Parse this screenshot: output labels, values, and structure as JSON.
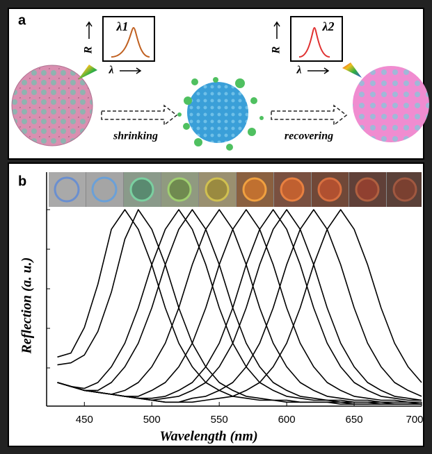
{
  "panel_a": {
    "label": "a",
    "box1": {
      "peak": "λ1",
      "y_axis": "R",
      "x_axis": "λ"
    },
    "box2": {
      "peak": "λ2",
      "y_axis": "R",
      "x_axis": "λ"
    },
    "arrow1": "shrinking",
    "arrow2": "recovering"
  },
  "chart_data": {
    "type": "line",
    "panel_label": "b",
    "x_label": "Wavelength (nm)",
    "y_label": "Reflection (a. u.)",
    "x": [
      430,
      440,
      450,
      460,
      470,
      480,
      490,
      500,
      510,
      520,
      530,
      540,
      550,
      560,
      570,
      580,
      590,
      600,
      610,
      620,
      630,
      640,
      650,
      660,
      670,
      680,
      690,
      700
    ],
    "xlim": [
      422,
      700
    ],
    "xticks": [
      450,
      500,
      550,
      600,
      650,
      700
    ],
    "ylim": [
      0,
      1
    ],
    "series": [
      {
        "color": "#000000",
        "values": [
          0.25,
          0.27,
          0.4,
          0.62,
          0.9,
          1.0,
          0.9,
          0.72,
          0.5,
          0.32,
          0.2,
          0.12,
          0.08,
          0.05,
          0.04,
          0.03,
          0.03,
          0.02,
          0.02,
          0.02,
          0.02,
          0.01,
          0.01,
          0.01,
          0.01,
          0.01,
          0.01,
          0.01
        ]
      },
      {
        "color": "#000000",
        "values": [
          0.21,
          0.22,
          0.26,
          0.38,
          0.58,
          0.85,
          1.0,
          0.9,
          0.72,
          0.5,
          0.32,
          0.2,
          0.12,
          0.08,
          0.05,
          0.04,
          0.03,
          0.03,
          0.02,
          0.02,
          0.02,
          0.02,
          0.01,
          0.01,
          0.01,
          0.01,
          0.01,
          0.01
        ]
      },
      {
        "color": "#000000",
        "values": [
          0.12,
          0.1,
          0.09,
          0.12,
          0.2,
          0.32,
          0.5,
          0.72,
          0.9,
          1.0,
          0.9,
          0.72,
          0.5,
          0.32,
          0.2,
          0.12,
          0.08,
          0.05,
          0.04,
          0.03,
          0.03,
          0.02,
          0.02,
          0.02,
          0.01,
          0.01,
          0.01,
          0.01
        ]
      },
      {
        "color": "#000000",
        "values": [
          0.12,
          0.1,
          0.08,
          0.08,
          0.12,
          0.2,
          0.32,
          0.5,
          0.72,
          0.9,
          1.0,
          0.9,
          0.72,
          0.5,
          0.32,
          0.2,
          0.12,
          0.08,
          0.05,
          0.04,
          0.03,
          0.03,
          0.02,
          0.02,
          0.02,
          0.01,
          0.01,
          0.01
        ]
      },
      {
        "color": "#000000",
        "values": [
          0.12,
          0.1,
          0.08,
          0.07,
          0.06,
          0.08,
          0.12,
          0.2,
          0.32,
          0.5,
          0.72,
          0.9,
          1.0,
          0.9,
          0.72,
          0.5,
          0.32,
          0.2,
          0.12,
          0.08,
          0.05,
          0.04,
          0.03,
          0.03,
          0.02,
          0.02,
          0.02,
          0.01
        ]
      },
      {
        "color": "#000000",
        "values": [
          0.12,
          0.1,
          0.08,
          0.07,
          0.06,
          0.05,
          0.05,
          0.08,
          0.12,
          0.2,
          0.32,
          0.5,
          0.72,
          0.9,
          1.0,
          0.9,
          0.72,
          0.5,
          0.32,
          0.2,
          0.12,
          0.08,
          0.05,
          0.04,
          0.03,
          0.03,
          0.02,
          0.02
        ]
      },
      {
        "color": "#000000",
        "values": [
          0.12,
          0.1,
          0.08,
          0.07,
          0.06,
          0.05,
          0.04,
          0.04,
          0.05,
          0.08,
          0.12,
          0.2,
          0.32,
          0.5,
          0.72,
          0.9,
          1.0,
          0.9,
          0.72,
          0.5,
          0.32,
          0.2,
          0.12,
          0.08,
          0.05,
          0.04,
          0.03,
          0.03
        ]
      },
      {
        "color": "#000000",
        "values": [
          0.12,
          0.1,
          0.08,
          0.07,
          0.06,
          0.05,
          0.04,
          0.03,
          0.04,
          0.05,
          0.08,
          0.12,
          0.2,
          0.32,
          0.5,
          0.72,
          0.9,
          1.0,
          0.9,
          0.72,
          0.5,
          0.32,
          0.2,
          0.12,
          0.08,
          0.05,
          0.04,
          0.03
        ]
      },
      {
        "color": "#000000",
        "values": [
          0.12,
          0.1,
          0.08,
          0.07,
          0.06,
          0.05,
          0.04,
          0.03,
          0.02,
          0.02,
          0.04,
          0.05,
          0.08,
          0.12,
          0.2,
          0.32,
          0.5,
          0.72,
          0.9,
          1.0,
          0.9,
          0.72,
          0.5,
          0.32,
          0.2,
          0.12,
          0.08,
          0.05
        ]
      },
      {
        "color": "#000000",
        "values": [
          0.12,
          0.1,
          0.08,
          0.07,
          0.06,
          0.05,
          0.04,
          0.03,
          0.02,
          0.02,
          0.02,
          0.03,
          0.04,
          0.05,
          0.08,
          0.12,
          0.2,
          0.32,
          0.5,
          0.72,
          0.9,
          1.0,
          0.9,
          0.72,
          0.5,
          0.32,
          0.2,
          0.12
        ]
      }
    ]
  }
}
